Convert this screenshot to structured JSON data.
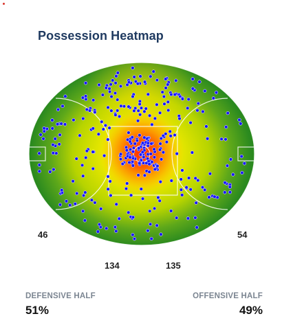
{
  "title": "Possession Heatmap",
  "chart_data": {
    "type": "heatmap",
    "title": "Possession Heatmap",
    "zones": [
      {
        "name": "left-pocket",
        "value": 46
      },
      {
        "name": "left-center",
        "value": 134
      },
      {
        "name": "right-center",
        "value": 135
      },
      {
        "name": "right-pocket",
        "value": 54
      }
    ],
    "halves": [
      {
        "label": "DEFENSIVE HALF",
        "value": "51%"
      },
      {
        "label": "OFFENSIVE HALF",
        "value": "49%"
      }
    ],
    "point_color": "#1a1aff",
    "heat_colors": [
      "#ff3c00",
      "#ffb000",
      "#f4f000",
      "#b8d800",
      "#2e8b1e"
    ],
    "field_line_color": "#ffffff"
  },
  "labels": {
    "left_pocket": "46",
    "left_center": "134",
    "right_center": "135",
    "right_pocket": "54"
  },
  "footer": {
    "defensive_label": "DEFENSIVE HALF",
    "defensive_value": "51%",
    "offensive_label": "OFFENSIVE HALF",
    "offensive_value": "49%"
  }
}
